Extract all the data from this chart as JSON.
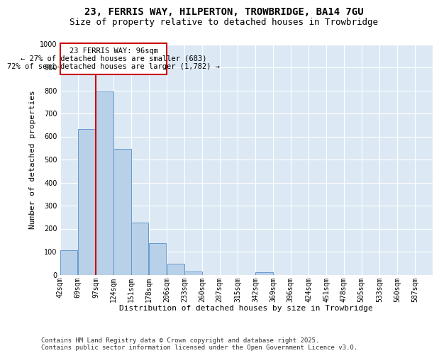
{
  "title_line1": "23, FERRIS WAY, HILPERTON, TROWBRIDGE, BA14 7GU",
  "title_line2": "Size of property relative to detached houses in Trowbridge",
  "xlabel": "Distribution of detached houses by size in Trowbridge",
  "ylabel": "Number of detached properties",
  "bins": [
    42,
    69,
    97,
    124,
    151,
    178,
    206,
    233,
    260,
    287,
    315,
    342,
    369,
    396,
    424,
    451,
    478,
    505,
    533,
    560,
    587
  ],
  "bar_labels": [
    "42sqm",
    "69sqm",
    "97sqm",
    "124sqm",
    "151sqm",
    "178sqm",
    "206sqm",
    "233sqm",
    "260sqm",
    "287sqm",
    "315sqm",
    "342sqm",
    "369sqm",
    "396sqm",
    "424sqm",
    "451sqm",
    "478sqm",
    "505sqm",
    "533sqm",
    "560sqm",
    "587sqm"
  ],
  "values": [
    105,
    632,
    795,
    545,
    225,
    138,
    48,
    13,
    0,
    0,
    0,
    10,
    0,
    0,
    0,
    0,
    0,
    0,
    0,
    0
  ],
  "bar_color": "#b8d0e8",
  "bar_edge_color": "#6699cc",
  "vline_color": "#cc0000",
  "vline_x_index": 2,
  "annotation_line1": "23 FERRIS WAY: 96sqm",
  "annotation_line2": "← 27% of detached houses are smaller (683)",
  "annotation_line3": "72% of semi-detached houses are larger (1,782) →",
  "annotation_box_color": "#cc0000",
  "ylim": [
    0,
    1000
  ],
  "yticks": [
    0,
    100,
    200,
    300,
    400,
    500,
    600,
    700,
    800,
    900,
    1000
  ],
  "background_color": "#dce9f5",
  "grid_color": "#ffffff",
  "footer": "Contains HM Land Registry data © Crown copyright and database right 2025.\nContains public sector information licensed under the Open Government Licence v3.0.",
  "title_fontsize": 10,
  "subtitle_fontsize": 9,
  "axis_label_fontsize": 8,
  "tick_fontsize": 7,
  "footer_fontsize": 6.5,
  "annotation_fontsize": 7.5
}
